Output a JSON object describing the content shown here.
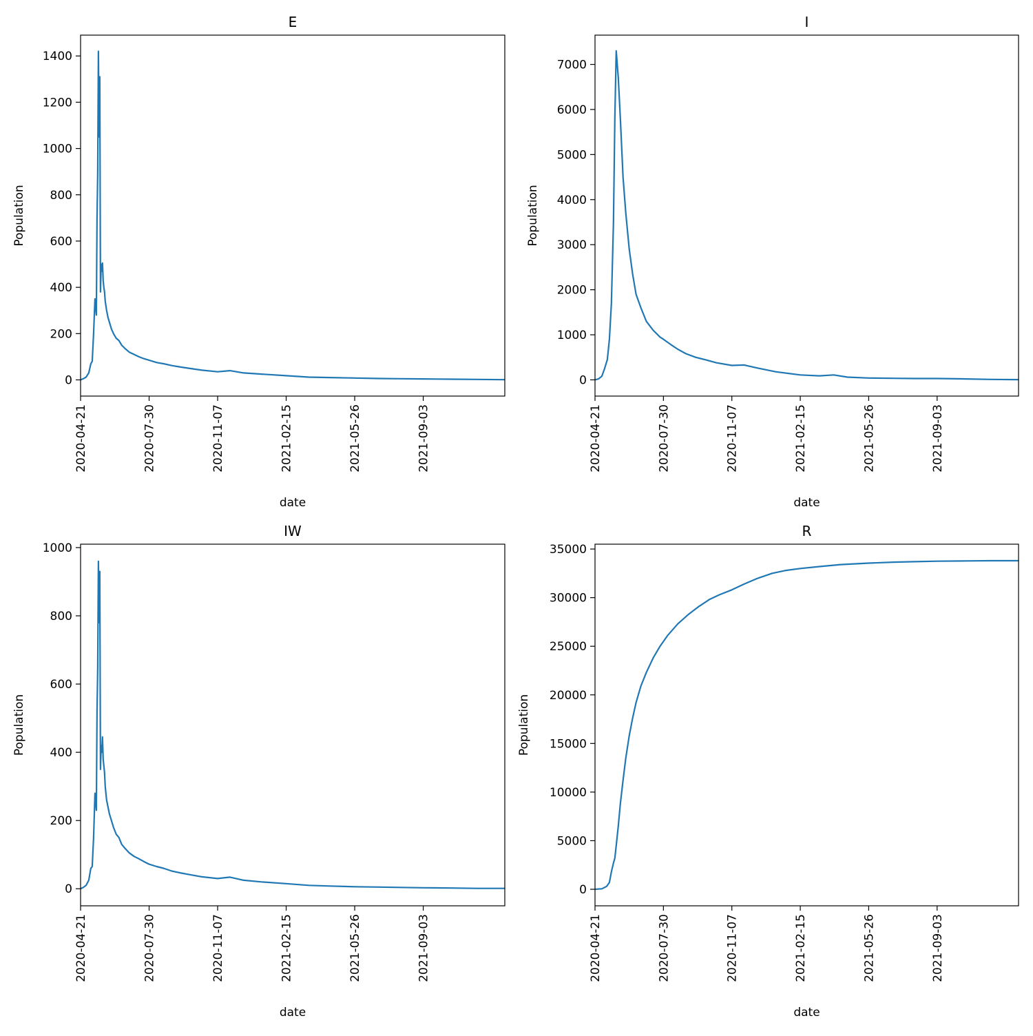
{
  "figure": {
    "line_color": "#1f77b4",
    "axes_color": "#000000"
  },
  "chart_data": [
    {
      "type": "line",
      "title": "E",
      "xlabel": "date",
      "ylabel": "Population",
      "xlim": [
        "2020-04-21",
        "2021-12-31"
      ],
      "ylim": [
        -70,
        1490
      ],
      "yticks": [
        0,
        200,
        400,
        600,
        800,
        1000,
        1200,
        1400
      ],
      "xticks": [
        "2020-04-21",
        "2020-07-30",
        "2020-11-07",
        "2021-02-15",
        "2021-05-26",
        "2021-09-03"
      ],
      "grid": false,
      "series": [
        {
          "x": [
            "2020-04-21",
            "2020-04-25",
            "2020-04-29",
            "2020-05-03",
            "2020-05-06",
            "2020-05-08",
            "2020-05-10",
            "2020-05-12",
            "2020-05-14",
            "2020-05-15",
            "2020-05-16",
            "2020-05-17",
            "2020-05-18",
            "2020-05-19",
            "2020-05-20",
            "2020-05-21",
            "2020-05-22",
            "2020-05-23",
            "2020-05-24",
            "2020-05-25",
            "2020-05-26",
            "2020-05-27",
            "2020-05-28",
            "2020-05-29",
            "2020-05-31",
            "2020-06-02",
            "2020-06-05",
            "2020-06-08",
            "2020-06-12",
            "2020-06-16",
            "2020-06-20",
            "2020-06-25",
            "2020-07-01",
            "2020-07-08",
            "2020-07-15",
            "2020-07-22",
            "2020-07-30",
            "2020-08-10",
            "2020-08-20",
            "2020-09-01",
            "2020-09-15",
            "2020-10-01",
            "2020-10-15",
            "2020-11-07",
            "2020-11-25",
            "2020-12-15",
            "2021-01-10",
            "2021-02-15",
            "2021-03-20",
            "2021-04-20",
            "2021-05-26",
            "2021-07-01",
            "2021-08-01",
            "2021-09-03",
            "2021-10-15",
            "2021-11-20",
            "2021-12-31"
          ],
          "values": [
            0,
            5,
            12,
            30,
            70,
            80,
            200,
            350,
            280,
            700,
            900,
            1420,
            1050,
            1310,
            380,
            500,
            470,
            505,
            430,
            400,
            380,
            340,
            320,
            300,
            270,
            250,
            220,
            200,
            180,
            170,
            150,
            135,
            120,
            110,
            100,
            92,
            85,
            75,
            70,
            62,
            55,
            48,
            42,
            35,
            40,
            30,
            25,
            18,
            12,
            10,
            8,
            6,
            5,
            4,
            3,
            2,
            1
          ]
        }
      ]
    },
    {
      "type": "line",
      "title": "I",
      "xlabel": "date",
      "ylabel": "Population",
      "xlim": [
        "2020-04-21",
        "2021-12-31"
      ],
      "ylim": [
        -360,
        7650
      ],
      "yticks": [
        0,
        1000,
        2000,
        3000,
        4000,
        5000,
        6000,
        7000
      ],
      "xticks": [
        "2020-04-21",
        "2020-07-30",
        "2020-11-07",
        "2021-02-15",
        "2021-05-26",
        "2021-09-03"
      ],
      "grid": false,
      "series": [
        {
          "x": [
            "2020-04-21",
            "2020-04-26",
            "2020-05-01",
            "2020-05-05",
            "2020-05-09",
            "2020-05-12",
            "2020-05-15",
            "2020-05-18",
            "2020-05-20",
            "2020-05-22",
            "2020-05-25",
            "2020-05-28",
            "2020-06-01",
            "2020-06-05",
            "2020-06-10",
            "2020-06-15",
            "2020-06-20",
            "2020-06-27",
            "2020-07-05",
            "2020-07-15",
            "2020-07-25",
            "2020-07-30",
            "2020-08-10",
            "2020-08-20",
            "2020-09-01",
            "2020-09-15",
            "2020-10-01",
            "2020-10-15",
            "2020-11-07",
            "2020-11-25",
            "2020-12-15",
            "2021-01-10",
            "2021-02-15",
            "2021-03-15",
            "2021-04-05",
            "2021-04-25",
            "2021-05-26",
            "2021-07-01",
            "2021-08-01",
            "2021-09-03",
            "2021-10-15",
            "2021-11-20",
            "2021-12-31"
          ],
          "values": [
            0,
            20,
            80,
            250,
            450,
            900,
            1700,
            3500,
            5800,
            7300,
            6700,
            5800,
            4500,
            3700,
            2900,
            2350,
            1900,
            1600,
            1300,
            1100,
            950,
            900,
            780,
            680,
            580,
            500,
            440,
            380,
            320,
            330,
            260,
            180,
            110,
            90,
            110,
            60,
            40,
            35,
            30,
            30,
            20,
            10,
            5
          ]
        }
      ]
    },
    {
      "type": "line",
      "title": "IW",
      "xlabel": "date",
      "ylabel": "Population",
      "xlim": [
        "2020-04-21",
        "2021-12-31"
      ],
      "ylim": [
        -50,
        1010
      ],
      "yticks": [
        0,
        200,
        400,
        600,
        800,
        1000
      ],
      "xticks": [
        "2020-04-21",
        "2020-07-30",
        "2020-11-07",
        "2021-02-15",
        "2021-05-26",
        "2021-09-03"
      ],
      "grid": false,
      "series": [
        {
          "x": [
            "2020-04-21",
            "2020-04-25",
            "2020-04-29",
            "2020-05-03",
            "2020-05-06",
            "2020-05-08",
            "2020-05-10",
            "2020-05-12",
            "2020-05-14",
            "2020-05-15",
            "2020-05-16",
            "2020-05-17",
            "2020-05-18",
            "2020-05-19",
            "2020-05-20",
            "2020-05-21",
            "2020-05-22",
            "2020-05-23",
            "2020-05-24",
            "2020-05-25",
            "2020-05-26",
            "2020-05-27",
            "2020-05-28",
            "2020-05-29",
            "2020-05-31",
            "2020-06-02",
            "2020-06-05",
            "2020-06-08",
            "2020-06-12",
            "2020-06-16",
            "2020-06-20",
            "2020-06-25",
            "2020-07-01",
            "2020-07-08",
            "2020-07-15",
            "2020-07-22",
            "2020-07-30",
            "2020-08-10",
            "2020-08-20",
            "2020-09-01",
            "2020-09-15",
            "2020-10-01",
            "2020-10-15",
            "2020-11-07",
            "2020-11-25",
            "2020-12-15",
            "2021-01-10",
            "2021-02-15",
            "2021-03-20",
            "2021-04-20",
            "2021-05-26",
            "2021-07-01",
            "2021-08-01",
            "2021-09-03",
            "2021-10-15",
            "2021-11-20",
            "2021-12-31"
          ],
          "values": [
            0,
            4,
            10,
            25,
            60,
            65,
            150,
            280,
            230,
            520,
            650,
            960,
            780,
            930,
            350,
            420,
            400,
            445,
            380,
            360,
            340,
            300,
            280,
            260,
            240,
            220,
            200,
            180,
            160,
            150,
            130,
            118,
            105,
            95,
            88,
            80,
            72,
            65,
            60,
            52,
            46,
            40,
            35,
            30,
            34,
            25,
            20,
            15,
            10,
            8,
            6,
            5,
            4,
            3,
            2,
            1,
            1
          ]
        }
      ]
    },
    {
      "type": "line",
      "title": "R",
      "xlabel": "date",
      "ylabel": "Population",
      "xlim": [
        "2020-04-21",
        "2021-12-31"
      ],
      "ylim": [
        -1700,
        35500
      ],
      "yticks": [
        0,
        5000,
        10000,
        15000,
        20000,
        25000,
        30000,
        35000
      ],
      "xticks": [
        "2020-04-21",
        "2020-07-30",
        "2020-11-07",
        "2021-02-15",
        "2021-05-26",
        "2021-09-03"
      ],
      "grid": false,
      "series": [
        {
          "x": [
            "2020-04-21",
            "2020-05-01",
            "2020-05-08",
            "2020-05-12",
            "2020-05-15",
            "2020-05-18",
            "2020-05-20",
            "2020-05-22",
            "2020-05-25",
            "2020-05-28",
            "2020-06-01",
            "2020-06-05",
            "2020-06-10",
            "2020-06-15",
            "2020-06-20",
            "2020-06-27",
            "2020-07-05",
            "2020-07-15",
            "2020-07-25",
            "2020-08-05",
            "2020-08-20",
            "2020-09-05",
            "2020-09-20",
            "2020-10-05",
            "2020-10-20",
            "2020-11-07",
            "2020-11-25",
            "2020-12-15",
            "2021-01-05",
            "2021-01-25",
            "2021-02-15",
            "2021-03-15",
            "2021-04-15",
            "2021-05-26",
            "2021-07-01",
            "2021-08-01",
            "2021-09-03",
            "2021-10-15",
            "2021-11-20",
            "2021-12-31"
          ],
          "values": [
            0,
            50,
            300,
            700,
            1800,
            2700,
            3200,
            4500,
            6500,
            8800,
            11200,
            13500,
            15800,
            17600,
            19200,
            20900,
            22300,
            23800,
            25000,
            26100,
            27300,
            28300,
            29100,
            29800,
            30300,
            30800,
            31400,
            32000,
            32500,
            32800,
            33000,
            33200,
            33400,
            33550,
            33650,
            33700,
            33750,
            33780,
            33800,
            33800
          ]
        }
      ]
    }
  ]
}
